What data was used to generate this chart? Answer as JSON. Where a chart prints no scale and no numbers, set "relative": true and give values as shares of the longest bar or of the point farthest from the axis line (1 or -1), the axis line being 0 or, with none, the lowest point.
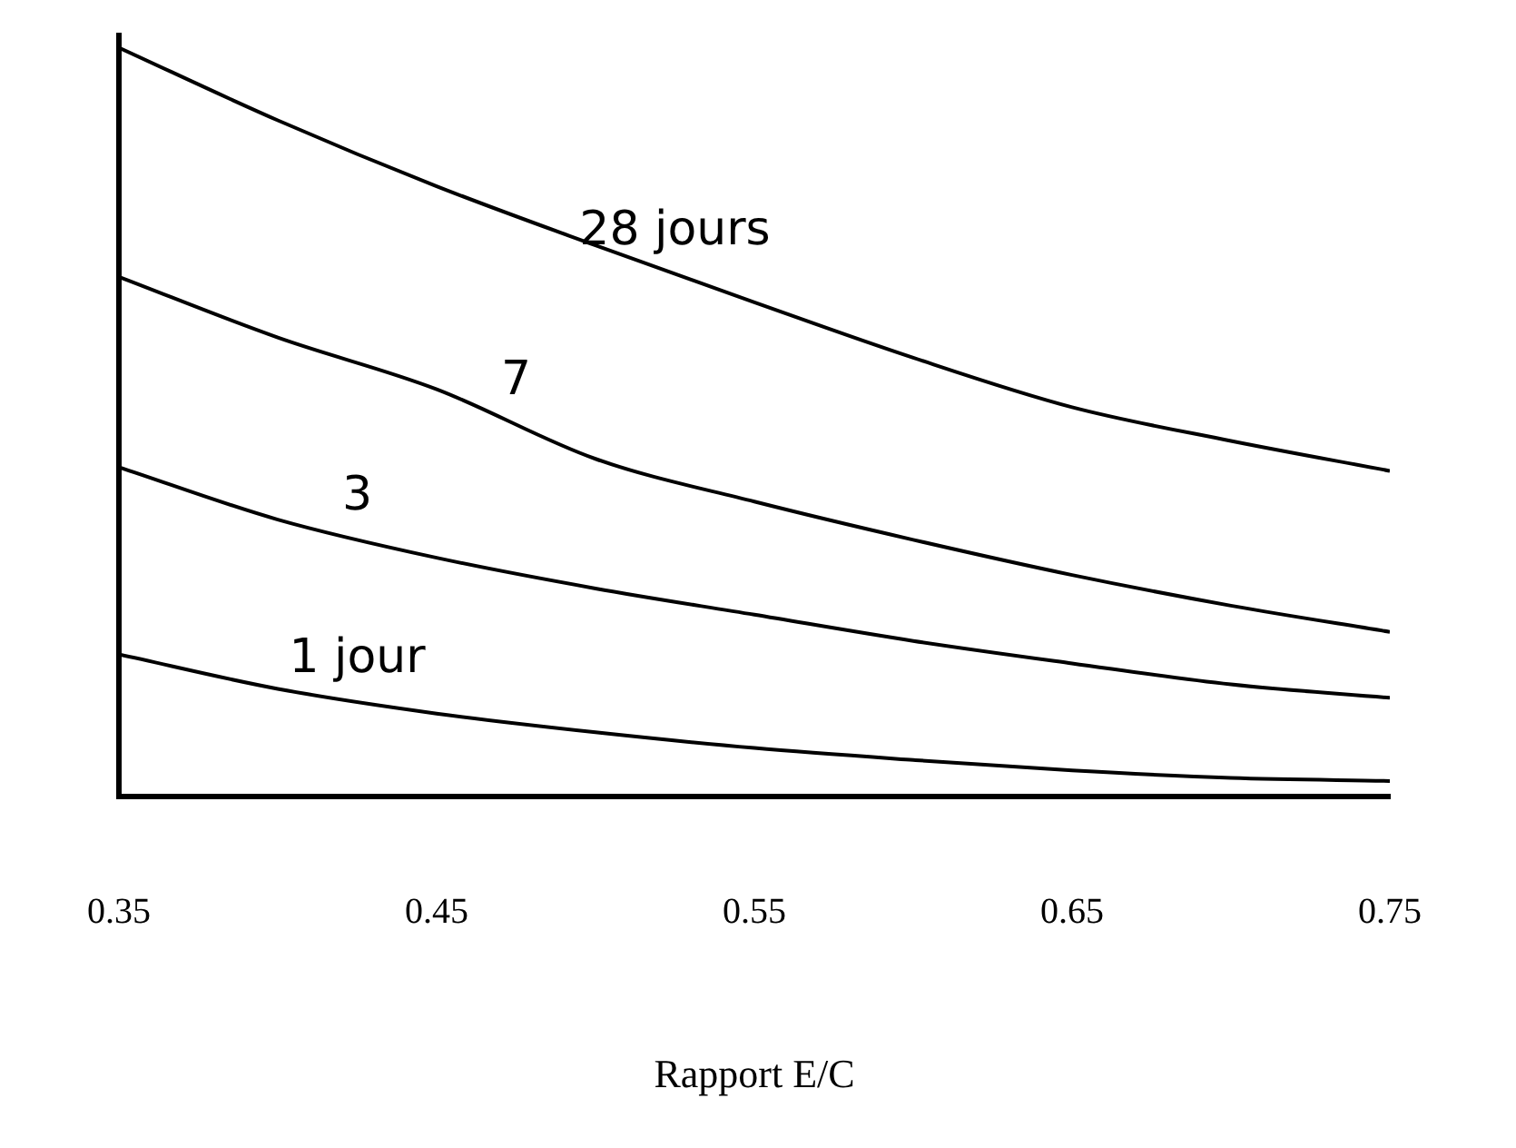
{
  "chart_data": {
    "type": "line",
    "relative": true,
    "xlabel": "Rapport E/C",
    "x": [
      0.35,
      0.4,
      0.45,
      0.5,
      0.55,
      0.6,
      0.65,
      0.7,
      0.75
    ],
    "xlim": [
      0.35,
      0.75
    ],
    "xticks": [
      0.35,
      0.45,
      0.55,
      0.65,
      0.75
    ],
    "grid": false,
    "legend": false,
    "marker": "none",
    "line_style": "solid",
    "series": [
      {
        "name": "28 jours",
        "color": "#000000",
        "values": [
          1.0,
          0.903,
          0.815,
          0.736,
          0.66,
          0.586,
          0.52,
          0.475,
          0.435
        ]
      },
      {
        "name": "7",
        "color": "#000000",
        "values": [
          0.694,
          0.613,
          0.544,
          0.451,
          0.394,
          0.343,
          0.296,
          0.255,
          0.22
        ]
      },
      {
        "name": "3",
        "color": "#000000",
        "values": [
          0.44,
          0.37,
          0.319,
          0.278,
          0.243,
          0.208,
          0.178,
          0.15,
          0.132
        ]
      },
      {
        "name": "1 jour",
        "color": "#000000",
        "values": [
          0.19,
          0.144,
          0.111,
          0.086,
          0.065,
          0.049,
          0.035,
          0.025,
          0.021
        ]
      }
    ]
  }
}
